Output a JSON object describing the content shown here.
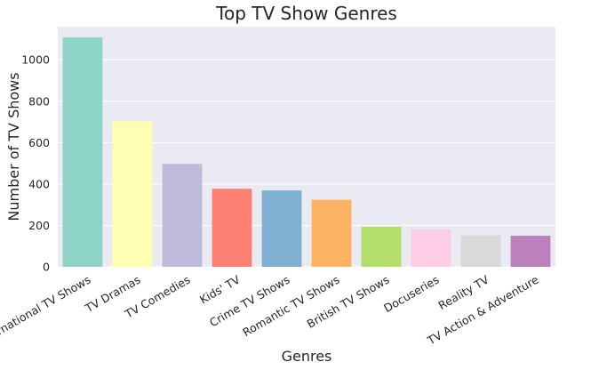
{
  "chart_data": {
    "type": "bar",
    "title": "Top TV Show Genres",
    "xlabel": "Genres",
    "ylabel": "Number of TV Shows",
    "categories": [
      "International TV Shows",
      "TV Dramas",
      "TV Comedies",
      "Kids' TV",
      "Crime TV Shows",
      "Romantic TV Shows",
      "British TV Shows",
      "Docuseries",
      "Reality TV",
      "TV Action & Adventure"
    ],
    "values": [
      1108,
      703,
      497,
      377,
      369,
      324,
      193,
      181,
      152,
      150
    ],
    "colors": [
      "#8dd3c7",
      "#ffffb3",
      "#bebada",
      "#fb8072",
      "#80b1d3",
      "#fdb462",
      "#b3de69",
      "#fccde5",
      "#d9d9d9",
      "#bc80bd"
    ],
    "ylim": [
      0,
      1160
    ],
    "yticks": [
      0,
      200,
      400,
      600,
      800,
      1000
    ],
    "grid": true,
    "background": "#eaeaf2"
  }
}
